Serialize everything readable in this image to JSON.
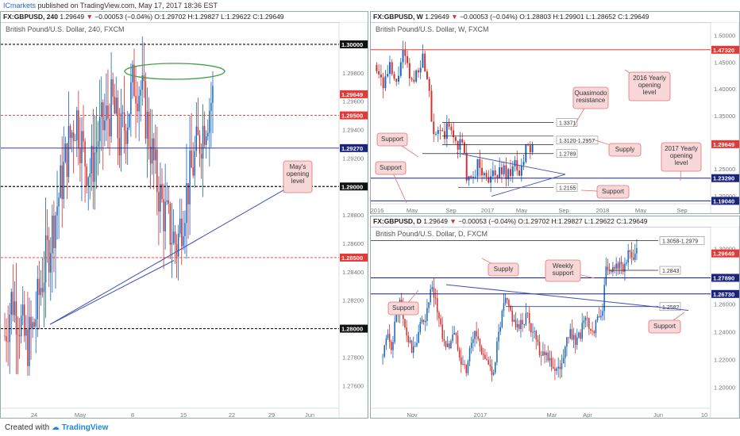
{
  "header": {
    "publisher": "ICmarkets",
    "published_text": "published on TradingView.com, May 17, 2017 18:36 EST"
  },
  "footer": {
    "created_with": "Created with",
    "brand": "TradingView"
  },
  "colors": {
    "up": "#1565c0",
    "down": "#d32f2f",
    "resistance": "#e53935",
    "support_line": "#1a237e",
    "trend": "#3f51b5",
    "zone_green": "#43a047",
    "callout_fill": "#f8d7d9",
    "callout_stroke": "#e57373"
  },
  "panels": {
    "h4": {
      "symbol_line": "FX:GBPUSD, 240",
      "ohlc": [
        "1.29649",
        "▼",
        "−0.00053 (−0.04%)",
        "O:1.29702",
        "H:1.29827",
        "L:1.29622",
        "C:1.29649"
      ],
      "watermark": "British Pound/U.S. Dollar, 240, FXCM"
    },
    "weekly": {
      "symbol_line": "FX:GBPUSD, W",
      "ohlc": [
        "1.29649",
        "▼",
        "−0.00053 (−0.04%)",
        "O:1.28803",
        "H:1.29901",
        "L:1.28652",
        "C:1.29649"
      ],
      "watermark": "British Pound/U.S. Dollar, W, FXCM"
    },
    "daily": {
      "symbol_line": "FX:GBPUSD, D",
      "ohlc": [
        "1.29649",
        "▼",
        "−0.00053 (−0.04%)",
        "O:1.29702",
        "H:1.29827",
        "L:1.29622",
        "C:1.29649"
      ],
      "watermark": "British Pound/U.S. Dollar, D, FXCM"
    }
  },
  "chart_data": [
    {
      "type": "candlestick",
      "title": "British Pound/U.S. Dollar, 240, FXCM",
      "y_ticks": [
        "1.29800",
        "1.29600",
        "1.29400",
        "1.29200",
        "1.29000",
        "1.28800",
        "1.28600",
        "1.28400",
        "1.28200",
        "1.28000",
        "1.27800",
        "1.27600"
      ],
      "x_ticks": [
        "24",
        "May",
        "8",
        "15",
        "22",
        "29",
        "Jun"
      ],
      "ylim": [
        1.2744,
        1.301
      ],
      "levels": [
        {
          "label": "1.30000",
          "value": 1.3,
          "style": "black-dashed"
        },
        {
          "label": "1.29649",
          "value": 1.29649,
          "style": "current"
        },
        {
          "label": "1.29500",
          "value": 1.295,
          "style": "red-dashed"
        },
        {
          "label": "1.29270",
          "value": 1.2927,
          "style": "blue-solid"
        },
        {
          "label": "1.29000",
          "value": 1.29,
          "style": "black-dashed"
        },
        {
          "label": "1.28500",
          "value": 1.285,
          "style": "red-dashed"
        },
        {
          "label": "1.28000",
          "value": 1.28,
          "style": "black-dashed"
        }
      ],
      "annotations": [
        "May's opening level"
      ],
      "close_path": [
        1.2795,
        1.2822,
        1.2808,
        1.2788,
        1.28,
        1.283,
        1.2854,
        1.288,
        1.2905,
        1.2932,
        1.295,
        1.2922,
        1.291,
        1.2935,
        1.2945,
        1.2958,
        1.2932,
        1.2948,
        1.2975,
        1.2968,
        1.294,
        1.2908,
        1.2885,
        1.287,
        1.2858,
        1.2888,
        1.291,
        1.293,
        1.2948,
        1.2964
      ]
    },
    {
      "type": "candlestick",
      "title": "British Pound/U.S. Dollar, W, FXCM",
      "y_ticks": [
        "1.50000",
        "1.45000",
        "1.40000",
        "1.35000",
        "1.30000",
        "1.25000",
        "1.20000"
      ],
      "x_ticks": [
        "2016",
        "May",
        "Sep",
        "2017",
        "May",
        "Sep",
        "2018",
        "May",
        "Sep"
      ],
      "ylim": [
        1.185,
        1.51
      ],
      "levels": [
        {
          "label": "1.47320",
          "value": 1.4732,
          "style": "red-solid"
        },
        {
          "label": "1.29649",
          "value": 1.29649,
          "style": "current"
        },
        {
          "label": "1.23290",
          "value": 1.2329,
          "style": "blue-solid"
        },
        {
          "label": "1.19040",
          "value": 1.1904,
          "style": "blue-solid"
        }
      ],
      "boxes": [
        "1.3371",
        "1.3120-1.2957",
        "1.2789",
        "1.2155"
      ],
      "annotations": [
        "2016 Yearly opening level",
        "Quasimodo resistance",
        "Supply",
        "Support",
        "Support",
        "2017 Yearly opening level",
        "Support"
      ],
      "close_path": [
        1.445,
        1.428,
        1.41,
        1.422,
        1.438,
        1.42,
        1.402,
        1.44,
        1.465,
        1.448,
        1.425,
        1.408,
        1.428,
        1.445,
        1.46,
        1.44,
        1.418,
        1.34,
        1.32,
        1.325,
        1.306,
        1.315,
        1.33,
        1.318,
        1.306,
        1.296,
        1.3,
        1.274,
        1.228,
        1.22,
        1.24,
        1.26,
        1.25,
        1.235,
        1.245,
        1.225,
        1.24,
        1.232,
        1.248,
        1.254,
        1.238,
        1.245,
        1.262,
        1.248,
        1.24,
        1.25,
        1.292,
        1.283,
        1.296
      ]
    },
    {
      "type": "candlestick",
      "title": "British Pound/U.S. Dollar, D, FXCM",
      "y_ticks": [
        "1.30000",
        "1.28000",
        "1.26000",
        "1.24000",
        "1.22000",
        "1.20000"
      ],
      "x_ticks": [
        "Nov",
        "2017",
        "Mar",
        "Apr",
        "Jun",
        "10"
      ],
      "ylim": [
        1.185,
        1.31
      ],
      "levels": [
        {
          "label": "1.29649",
          "value": 1.29649,
          "style": "current"
        },
        {
          "label": "1.27890",
          "value": 1.2789,
          "style": "blue-solid"
        },
        {
          "label": "1.26730",
          "value": 1.2673,
          "style": "blue-solid"
        }
      ],
      "boxes": [
        "1.3058-1.2979",
        "1.2843",
        "1.2582"
      ],
      "annotations": [
        "Supply",
        "Weekly support",
        "Support",
        "Support"
      ],
      "close_path": [
        1.222,
        1.235,
        1.23,
        1.25,
        1.262,
        1.242,
        1.232,
        1.225,
        1.238,
        1.248,
        1.252,
        1.27,
        1.262,
        1.248,
        1.232,
        1.228,
        1.24,
        1.232,
        1.22,
        1.212,
        1.228,
        1.24,
        1.232,
        1.225,
        1.215,
        1.208,
        1.228,
        1.248,
        1.262,
        1.255,
        1.248,
        1.24,
        1.248,
        1.252,
        1.242,
        1.238,
        1.225,
        1.228,
        1.22,
        1.215,
        1.21,
        1.222,
        1.232,
        1.242,
        1.228,
        1.238,
        1.248,
        1.245,
        1.24,
        1.248,
        1.252,
        1.285,
        1.28,
        1.29,
        1.286,
        1.288,
        1.294,
        1.292,
        1.296
      ]
    }
  ]
}
